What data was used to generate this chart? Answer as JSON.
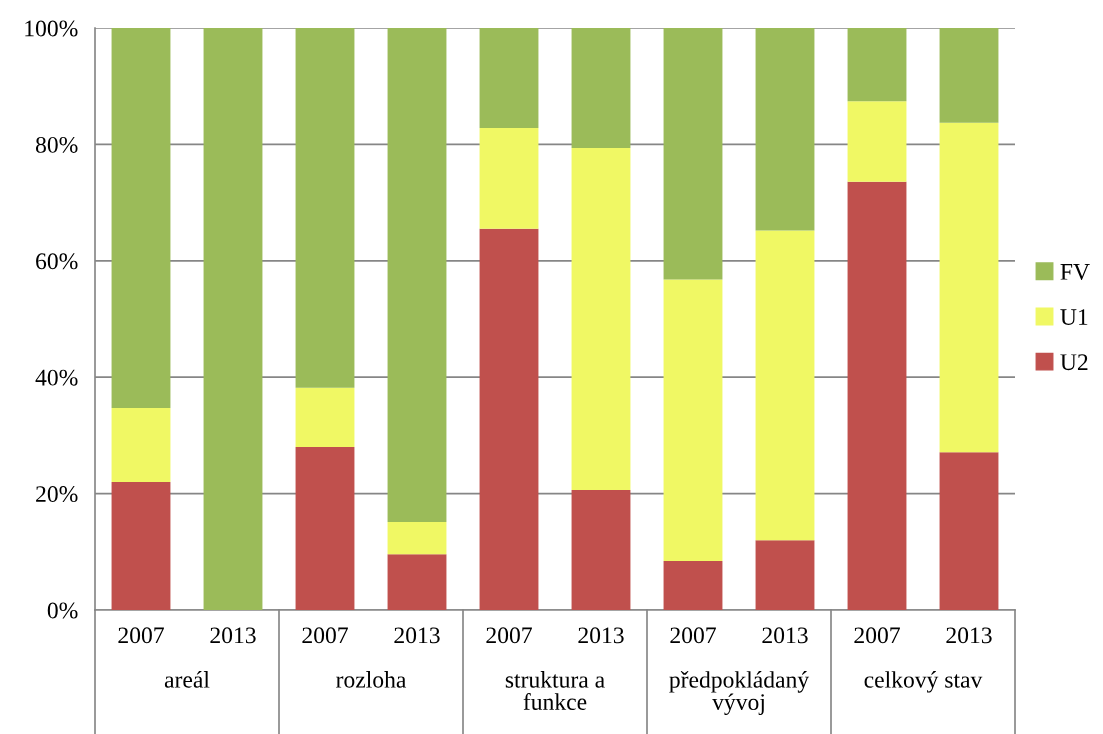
{
  "chart_data": {
    "type": "bar",
    "stacked": true,
    "categories": [
      "2007",
      "2013",
      "2007",
      "2013",
      "2007",
      "2013",
      "2007",
      "2013",
      "2007",
      "2013"
    ],
    "annotations": [
      "areál",
      "rozloha",
      "struktura a\nfunkce",
      "předpokládaný\nvývoj",
      "celkový stav"
    ],
    "series": [
      {
        "name": "U2",
        "color": "#c0504d",
        "values": [
          22.0,
          0,
          28.0,
          9.6,
          65.5,
          20.6,
          8.4,
          12.0,
          73.6,
          27.1
        ]
      },
      {
        "name": "U1",
        "color": "#f0f864",
        "values": [
          12.7,
          0,
          10.2,
          5.5,
          17.3,
          58.8,
          48.4,
          53.2,
          13.8,
          56.6
        ]
      },
      {
        "name": "FV",
        "color": "#9bbb59",
        "values": [
          65.3,
          100,
          61.8,
          84.9,
          17.2,
          20.6,
          43.2,
          34.8,
          12.6,
          16.3
        ]
      }
    ],
    "ylim": [
      0,
      100
    ],
    "yticks": [
      {
        "value": 0,
        "label": "0%"
      },
      {
        "value": 20,
        "label": "20%"
      },
      {
        "value": 40,
        "label": "40%"
      },
      {
        "value": 60,
        "label": "60%"
      },
      {
        "value": 80,
        "label": "80%"
      },
      {
        "value": 100,
        "label": "100%"
      }
    ],
    "grid": "y",
    "legend": "right"
  }
}
